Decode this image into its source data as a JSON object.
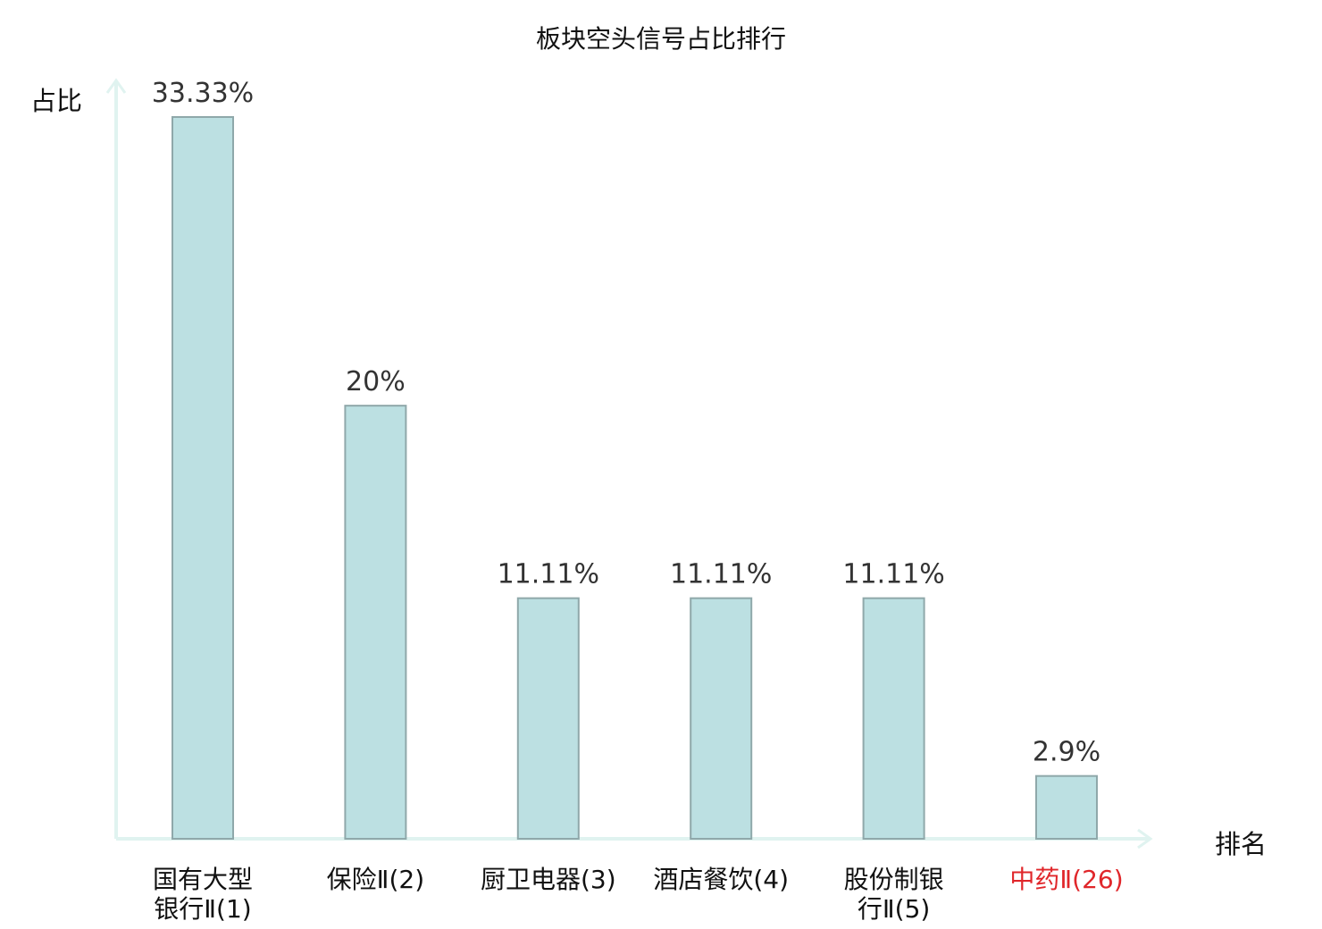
{
  "chart_data": {
    "type": "bar",
    "title": "板块空头信号占比排行",
    "ylabel": "占比",
    "xlabel": "排名",
    "ylim": [
      0,
      35
    ],
    "grid": false,
    "legend": "none",
    "categories": [
      {
        "lines": [
          "国有大型",
          "银行Ⅱ(1)"
        ],
        "highlight": false
      },
      {
        "lines": [
          "保险Ⅱ(2)"
        ],
        "highlight": false
      },
      {
        "lines": [
          "厨卫电器(3)"
        ],
        "highlight": false
      },
      {
        "lines": [
          "酒店餐饮(4)"
        ],
        "highlight": false
      },
      {
        "lines": [
          "股份制银",
          "行Ⅱ(5)"
        ],
        "highlight": false
      },
      {
        "lines": [
          "中药Ⅱ(26)"
        ],
        "highlight": true
      }
    ],
    "values": [
      33.33,
      20,
      11.11,
      11.11,
      11.11,
      2.9
    ],
    "value_labels": [
      "33.33%",
      "20%",
      "11.11%",
      "11.11%",
      "11.11%",
      "2.9%"
    ]
  },
  "colors": {
    "bar_fill": "#bce0e2",
    "bar_stroke": "#8fa8aa",
    "axis": "#e0f3f0",
    "text": "#111111",
    "value_text": "#333333",
    "highlight": "#e0262a"
  }
}
